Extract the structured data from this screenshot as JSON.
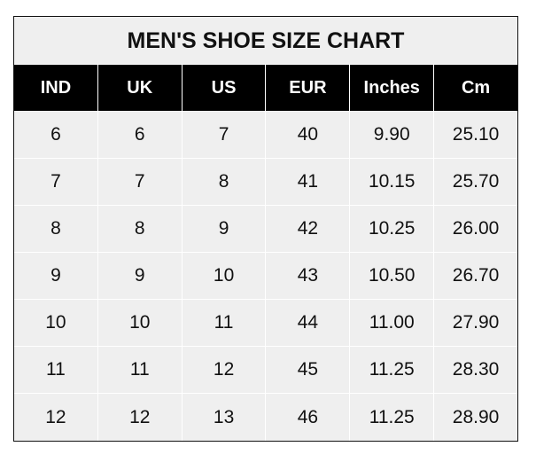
{
  "chart_data": {
    "type": "table",
    "title": "MEN'S SHOE SIZE CHART",
    "columns": [
      "IND",
      "UK",
      "US",
      "EUR",
      "Inches",
      "Cm"
    ],
    "rows": [
      [
        "6",
        "6",
        "7",
        "40",
        "9.90",
        "25.10"
      ],
      [
        "7",
        "7",
        "8",
        "41",
        "10.15",
        "25.70"
      ],
      [
        "8",
        "8",
        "9",
        "42",
        "10.25",
        "26.00"
      ],
      [
        "9",
        "9",
        "10",
        "43",
        "10.50",
        "26.70"
      ],
      [
        "10",
        "10",
        "11",
        "44",
        "11.00",
        "27.90"
      ],
      [
        "11",
        "11",
        "12",
        "45",
        "11.25",
        "28.30"
      ],
      [
        "12",
        "12",
        "13",
        "46",
        "11.25",
        "28.90"
      ]
    ]
  },
  "colors": {
    "header_bg": "#000000",
    "cell_bg": "#efefef",
    "grid": "#ffffff"
  }
}
